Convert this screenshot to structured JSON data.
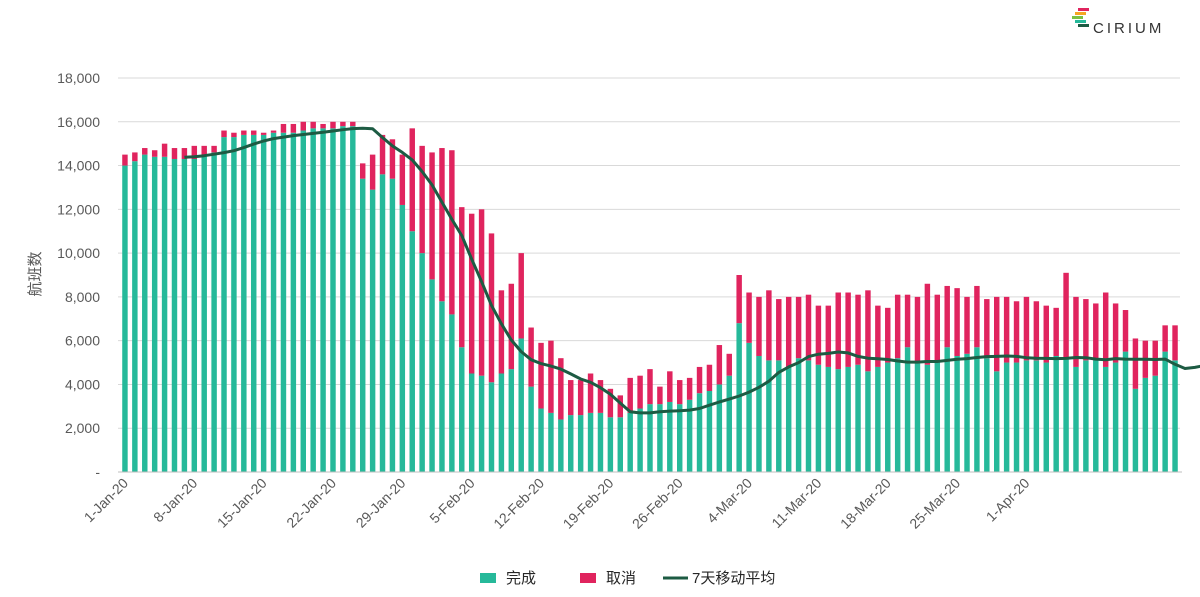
{
  "brand": {
    "name": "CIRIUM"
  },
  "colors": {
    "completed": "#26b99a",
    "cancelled": "#e0245e",
    "average": "#1d5b43"
  },
  "chart_data": {
    "type": "bar",
    "stacked": true,
    "ylabel": "航班数",
    "ylim": [
      0,
      18000
    ],
    "yticks": [
      {
        "value": 0,
        "label": "-"
      },
      {
        "value": 2000,
        "label": "2,000"
      },
      {
        "value": 4000,
        "label": "4,000"
      },
      {
        "value": 6000,
        "label": "6,000"
      },
      {
        "value": 8000,
        "label": "8,000"
      },
      {
        "value": 10000,
        "label": "10,000"
      },
      {
        "value": 12000,
        "label": "12,000"
      },
      {
        "value": 14000,
        "label": "14,000"
      },
      {
        "value": 16000,
        "label": "16,000"
      },
      {
        "value": 18000,
        "label": "18,000"
      }
    ],
    "grid": true,
    "legend_position": "bottom",
    "x_tick_labels": [
      "1-Jan-20",
      "8-Jan-20",
      "15-Jan-20",
      "22-Jan-20",
      "29-Jan-20",
      "5-Feb-20",
      "12-Feb-20",
      "19-Feb-20",
      "26-Feb-20",
      "4-Mar-20",
      "11-Mar-20",
      "18-Mar-20",
      "25-Mar-20",
      "1-Apr-20"
    ],
    "x_tick_interval": 7,
    "series": [
      {
        "name": "完成",
        "type": "bar",
        "values": [
          14000,
          14200,
          14500,
          14400,
          14400,
          14300,
          14300,
          14300,
          14500,
          14600,
          15300,
          15300,
          15400,
          15400,
          15400,
          15500,
          15500,
          15500,
          15600,
          15700,
          15700,
          15700,
          15800,
          15800,
          13400,
          12900,
          13600,
          13400,
          12200,
          11000,
          10000,
          8800,
          7800,
          7200,
          5700,
          4500,
          4400,
          4100,
          4500,
          4700,
          6100,
          3900,
          2900,
          2700,
          2400,
          2600,
          2600,
          2700,
          2700,
          2500,
          2500,
          2700,
          2900,
          3100,
          3100,
          3200,
          3100,
          3300,
          3600,
          3700,
          4000,
          4400,
          6800,
          5900,
          5300,
          5100,
          5100,
          4800,
          5200,
          5100,
          4900,
          4800,
          4700,
          4800,
          4900,
          4600,
          4800,
          5000,
          5200,
          5700,
          5000,
          4900,
          5100,
          5700,
          5300,
          5400,
          5700,
          5200,
          4600,
          5000,
          5000,
          5100,
          5100,
          5000,
          5300,
          5200,
          4800,
          5100,
          5100,
          4800,
          5000,
          5500,
          3800,
          4300,
          4400,
          5500,
          5100
        ]
      },
      {
        "name": "取消",
        "type": "bar",
        "values": [
          500,
          400,
          300,
          300,
          600,
          500,
          500,
          600,
          400,
          300,
          300,
          200,
          200,
          200,
          100,
          100,
          400,
          400,
          400,
          300,
          200,
          300,
          200,
          200,
          700,
          1600,
          1800,
          1800,
          2300,
          4700,
          4900,
          5800,
          7000,
          7500,
          6400,
          7300,
          7600,
          6800,
          3800,
          3900,
          3900,
          2700,
          3000,
          3300,
          2800,
          1600,
          1600,
          1800,
          1500,
          1300,
          1000,
          1600,
          1500,
          1600,
          800,
          1400,
          1100,
          1000,
          1200,
          1200,
          1800,
          1000,
          2200,
          2300,
          2700,
          3200,
          2800,
          3200,
          2800,
          3000,
          2700,
          2800,
          3500,
          3400,
          3200,
          3700,
          2800,
          2500,
          2900,
          2400,
          3000,
          3700,
          3000,
          2800,
          3100,
          2600,
          2800,
          2700,
          3400,
          3000,
          2800,
          2900,
          2700,
          2600,
          2200,
          3900,
          3200,
          2800,
          2600,
          3400,
          2700,
          1900,
          2300,
          1700,
          1600,
          1200,
          1600
        ]
      },
      {
        "name": "7天移动平均",
        "type": "line",
        "start_index": 6,
        "values": [
          14380,
          14400,
          14450,
          14520,
          14590,
          14680,
          14820,
          14980,
          15120,
          15230,
          15300,
          15370,
          15420,
          15470,
          15520,
          15580,
          15640,
          15690,
          15700,
          15680,
          15280,
          14900,
          14600,
          14260,
          13730,
          13110,
          12320,
          11540,
          10800,
          9720,
          8700,
          7610,
          6770,
          6030,
          5500,
          5130,
          4950,
          4840,
          4700,
          4480,
          4250,
          4100,
          3850,
          3550,
          3150,
          2750,
          2700,
          2700,
          2750,
          2780,
          2800,
          2830,
          2900,
          3050,
          3200,
          3330,
          3470,
          3650,
          3870,
          4150,
          4550,
          4800,
          5000,
          5270,
          5380,
          5420,
          5480,
          5440,
          5280,
          5200,
          5170,
          5140,
          5070,
          5020,
          5020,
          5050,
          5050,
          5100,
          5150,
          5180,
          5230,
          5270,
          5280,
          5300,
          5280,
          5220,
          5200,
          5190,
          5180,
          5190,
          5230,
          5220,
          5160,
          5130,
          5180,
          5160,
          5150,
          5150,
          5140,
          5160,
          4920,
          4730,
          4780,
          4870,
          4920
        ]
      }
    ]
  }
}
